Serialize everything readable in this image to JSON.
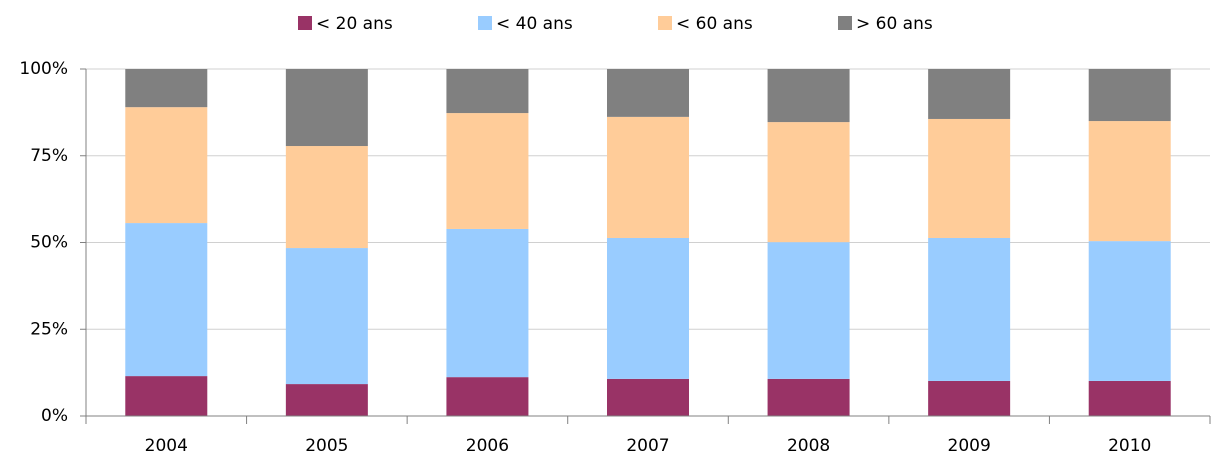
{
  "chart_data": {
    "type": "stacked_bar",
    "categories": [
      "2004",
      "2005",
      "2006",
      "2007",
      "2008",
      "2009",
      "2010"
    ],
    "series": [
      {
        "name": "< 20 ans",
        "color": "#993366",
        "values": [
          11.5,
          9.2,
          11.2,
          10.7,
          10.7,
          10.1,
          10.1
        ]
      },
      {
        "name": "< 40 ans",
        "color": "#99ccff",
        "values": [
          44.1,
          39.2,
          42.7,
          40.6,
          39.4,
          41.2,
          40.3
        ]
      },
      {
        "name": "< 60 ans",
        "color": "#ffcc99",
        "values": [
          33.4,
          29.4,
          33.4,
          34.9,
          34.6,
          34.3,
          34.6
        ]
      },
      {
        "name": "> 60 ans",
        "color": "#808080",
        "values": [
          11.0,
          22.2,
          12.7,
          13.8,
          15.3,
          14.4,
          15.0
        ]
      }
    ],
    "ylim": [
      0,
      100
    ],
    "yticks": [
      {
        "value": 0,
        "label": "0%"
      },
      {
        "value": 25,
        "label": "25%"
      },
      {
        "value": 50,
        "label": "50%"
      },
      {
        "value": 75,
        "label": "75%"
      },
      {
        "value": 100,
        "label": "100%"
      }
    ],
    "grid": true,
    "legend": "top"
  }
}
